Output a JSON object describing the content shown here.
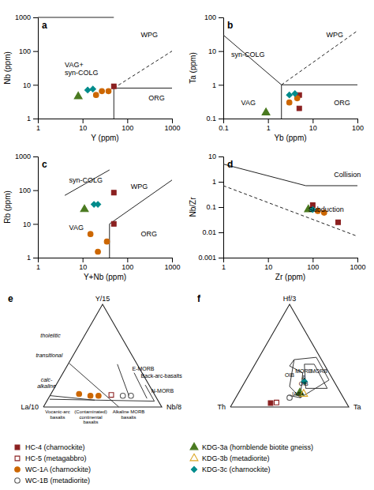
{
  "chart_data": [
    {
      "type": "scatter",
      "title": "a",
      "x_label": "Y (ppm)",
      "y_label": "Nb (ppm)",
      "log": true,
      "xlim": [
        1,
        1000
      ],
      "ylim": [
        1,
        1000
      ],
      "xticks": [
        1,
        10,
        100,
        1000
      ],
      "yticks": [
        1,
        10,
        100,
        1000
      ],
      "boundaries": [
        {
          "x": [
            1,
            50
          ],
          "y": [
            1000,
            1000
          ],
          "line_style": "solid"
        },
        {
          "x": [
            50,
            50
          ],
          "y": [
            8,
            1
          ],
          "line_style": "solid"
        },
        {
          "x": [
            50,
            1000
          ],
          "y": [
            8,
            8
          ],
          "line_style": "solid"
        },
        {
          "x": [
            50,
            1000
          ],
          "y": [
            8,
            100
          ],
          "line_style": "dashed"
        }
      ],
      "annotations": [
        {
          "text": "WPG",
          "x": 200,
          "y": 300
        },
        {
          "text": "VAG+\nsyn-COLG",
          "x": 4,
          "y": 30
        },
        {
          "text": "ORG",
          "x": 300,
          "y": 4
        }
      ],
      "series": [
        {
          "color": "#8B2020",
          "marker": "square",
          "x": [
            50
          ],
          "values": [
            9
          ]
        },
        {
          "color": "#CC6600",
          "marker": "circle",
          "x": [
            20,
            27
          ],
          "values": [
            5,
            6.5
          ]
        },
        {
          "color": "#4A7A20",
          "marker": "triangle",
          "x": [
            8
          ],
          "values": [
            4.5
          ]
        },
        {
          "color": "#008B8B",
          "marker": "diamond",
          "x": [
            13,
            17
          ],
          "values": [
            7,
            7.5
          ]
        },
        {
          "color": "#CC6600",
          "marker": "circle",
          "x": [
            38
          ],
          "values": [
            6.5
          ]
        }
      ]
    },
    {
      "type": "scatter",
      "title": "b",
      "x_label": "Yb (ppm)",
      "y_label": "Ta (ppm)",
      "log": true,
      "xlim": [
        0.1,
        100
      ],
      "ylim": [
        0.1,
        100
      ],
      "xticks": [
        0.1,
        1,
        10,
        100
      ],
      "yticks": [
        0.1,
        1,
        10,
        100
      ],
      "boundaries": [
        {
          "x": [
            0.1,
            2
          ],
          "y": [
            30,
            1
          ],
          "line_style": "solid"
        },
        {
          "x": [
            2,
            2
          ],
          "y": [
            1,
            0.1
          ],
          "line_style": "solid"
        },
        {
          "x": [
            2,
            100
          ],
          "y": [
            1,
            1
          ],
          "line_style": "solid"
        },
        {
          "x": [
            2,
            100
          ],
          "y": [
            1,
            40
          ],
          "line_style": "dashed"
        }
      ],
      "annotations": [
        {
          "text": "WPG",
          "x": 20,
          "y": 30
        },
        {
          "text": "syn-COLG",
          "x": 0.15,
          "y": 8
        },
        {
          "text": "VAG",
          "x": 0.25,
          "y": 0.3
        },
        {
          "text": "ORG",
          "x": 30,
          "y": 0.3
        }
      ],
      "series": [
        {
          "color": "#8B2020",
          "marker": "square",
          "x": [
            5
          ],
          "values": [
            0.5
          ]
        },
        {
          "color": "#8B2020",
          "marker": "square",
          "x": [
            5
          ],
          "values": [
            0.2
          ]
        },
        {
          "color": "#CC6600",
          "marker": "circle",
          "x": [
            3,
            4.5
          ],
          "values": [
            0.3,
            0.4
          ]
        },
        {
          "color": "#4A7A20",
          "marker": "triangle",
          "x": [
            0.9
          ],
          "values": [
            0.15
          ]
        },
        {
          "color": "#008B8B",
          "marker": "diamond",
          "x": [
            3,
            4
          ],
          "values": [
            0.5,
            0.55
          ]
        }
      ]
    },
    {
      "type": "scatter",
      "title": "c",
      "x_label": "Y+Nb (ppm)",
      "y_label": "Rb (ppm)",
      "log": true,
      "xlim": [
        1,
        1000
      ],
      "ylim": [
        1,
        1000
      ],
      "xticks": [
        1,
        10,
        100,
        1000
      ],
      "yticks": [
        1,
        10,
        100,
        1000
      ],
      "boundaries": [
        {
          "x": [
            4,
            40
          ],
          "y": [
            70,
            400
          ],
          "line_style": "solid"
        },
        {
          "x": [
            40,
            40
          ],
          "y": [
            10,
            1
          ],
          "line_style": "solid"
        },
        {
          "x": [
            40,
            1000
          ],
          "y": [
            10,
            200
          ],
          "line_style": "solid"
        }
      ],
      "annotations": [
        {
          "text": "syn-COLG",
          "x": 5,
          "y": 200
        },
        {
          "text": "WPG",
          "x": 120,
          "y": 130
        },
        {
          "text": "VAG",
          "x": 5,
          "y": 8
        },
        {
          "text": "ORG",
          "x": 200,
          "y": 5
        }
      ],
      "series": [
        {
          "color": "#8B2020",
          "marker": "square",
          "x": [
            50
          ],
          "values": [
            85
          ]
        },
        {
          "color": "#8B2020",
          "marker": "square",
          "x": [
            50
          ],
          "values": [
            10
          ]
        },
        {
          "color": "#CC6600",
          "marker": "circle",
          "x": [
            15,
            22
          ],
          "values": [
            5,
            1.5
          ]
        },
        {
          "color": "#CC6600",
          "marker": "circle",
          "x": [
            35
          ],
          "values": [
            3
          ]
        },
        {
          "color": "#4A7A20",
          "marker": "triangle",
          "x": [
            11
          ],
          "values": [
            27
          ]
        },
        {
          "color": "#008B8B",
          "marker": "diamond",
          "x": [
            18,
            22
          ],
          "values": [
            38,
            38
          ]
        }
      ]
    },
    {
      "type": "scatter",
      "title": "d",
      "x_label": "Zr (ppm)",
      "y_label": "Nb/Zr",
      "log": true,
      "xlim": [
        1,
        1000
      ],
      "ylim": [
        0.001,
        10
      ],
      "xticks": [
        1,
        10,
        100,
        1000
      ],
      "yticks": [
        0.001,
        0.01,
        0.1,
        1,
        10
      ],
      "boundaries": [
        {
          "x": [
            1,
            70
          ],
          "y": [
            5,
            0.7
          ],
          "line_style": "solid"
        },
        {
          "x": [
            70,
            1000
          ],
          "y": [
            0.7,
            0.7
          ],
          "line_style": "solid"
        },
        {
          "x": [
            1,
            1000
          ],
          "y": [
            0.7,
            0.007
          ],
          "line_style": "dashed"
        }
      ],
      "annotations": [
        {
          "text": "Collision",
          "x": 300,
          "y": 2
        },
        {
          "text": "Subduction",
          "x": 80,
          "y": 0.08
        }
      ],
      "series": [
        {
          "color": "#8B2020",
          "marker": "square",
          "x": [
            370
          ],
          "values": [
            0.025
          ]
        },
        {
          "color": "#CC6600",
          "marker": "circle",
          "x": [
            130,
            180
          ],
          "values": [
            0.07,
            0.06
          ]
        },
        {
          "color": "#4A7A20",
          "marker": "triangle",
          "x": [
            80
          ],
          "values": [
            0.08
          ]
        },
        {
          "color": "#8B2020",
          "marker": "square",
          "x": [
            100
          ],
          "values": [
            0.12
          ]
        },
        {
          "color": "#008B8B",
          "marker": "diamond",
          "x": [
            100
          ],
          "values": [
            0.08
          ]
        }
      ]
    },
    {
      "type": "ternary",
      "title": "e",
      "corner_labels": {
        "left": "La/10",
        "right": "Nb/8",
        "top": "Y/15"
      },
      "boundaries": [
        {
          "left": [
            0.3,
            6
          ],
          "right": [
            8,
            0.1
          ],
          "top": [
            0.5,
            0.5
          ]
        },
        {
          "left": [
            0.3,
            0.3
          ],
          "right": [
            8,
            7
          ],
          "top": [
            0.5,
            2
          ]
        },
        {
          "left": [
            0.5,
            0.5
          ],
          "right": [
            5,
            4.5
          ],
          "top": [
            0.5,
            2.5
          ]
        },
        {
          "left": [
            1,
            1
          ],
          "right": [
            3,
            2.5
          ],
          "top": [
            0.5,
            2.5
          ]
        },
        {
          "left": [
            4,
            4
          ],
          "right": [
            0.01,
            3
          ],
          "top": [
            0.5,
            0.5
          ]
        },
        {
          "left": [
            2,
            2
          ],
          "right": [
            0.01,
            3.5
          ],
          "top": [
            1.5,
            0.01
          ]
        }
      ],
      "annotations": [
        {
          "text": "N-MORB",
          "left": 0.2,
          "right": 9,
          "top": 1.5
        },
        {
          "text": "Back-arc-basalts",
          "left": 0.3,
          "right": 6,
          "top": 2.5
        },
        {
          "text": "E-MORB",
          "left": 0.5,
          "right": 4,
          "top": 2.5
        }
      ],
      "side_labels": [
        "tholeiitic",
        "transitional",
        "calc-\nalkaline"
      ],
      "base_labels": [
        "Vocanic-arc\nbasalts",
        "(Contaminated)\ncontinental\nbasalts",
        "Alkaline MORB\nbasalts"
      ],
      "series": [
        {
          "color": "#555555",
          "marker": "circle-open",
          "left": [
            1.5,
            2.0
          ],
          "right": [
            5,
            4.5
          ],
          "top": [
            0.8,
            0.8
          ]
        },
        {
          "color": "#8B2020",
          "marker": "square-open",
          "left": [
            2.5
          ],
          "right": [
            3.5
          ],
          "top": [
            0.8
          ]
        },
        {
          "color": "#CC6600",
          "marker": "circle",
          "left": [
            3.5,
            4,
            4
          ],
          "right": [
            3,
            2.5,
            1.5
          ],
          "top": [
            0.8,
            0.8,
            0.8
          ]
        }
      ]
    },
    {
      "type": "ternary",
      "title": "f",
      "corner_labels": {
        "left": "Th",
        "right": "Ta",
        "top": "Hf/3"
      },
      "boundaries": [
        {
          "left": [
            0.2,
            0.2,
            1.5,
            2,
            2,
            0.2
          ],
          "right": [
            4,
            3,
            2,
            2,
            3,
            4
          ],
          "top": [
            1.5,
            3,
            3,
            1,
            0.5,
            1.5
          ]
        },
        {
          "left": [
            0.5,
            0.5,
            1,
            1.5,
            0.5
          ],
          "right": [
            4,
            3,
            2.5,
            3,
            4
          ],
          "top": [
            1,
            2.5,
            2.5,
            1,
            1
          ]
        },
        {
          "left": [
            2,
            1,
            1.5,
            1.5
          ],
          "right": [
            3,
            2,
            1.5,
            2
          ],
          "top": [
            0.5,
            1.5,
            2,
            3
          ]
        },
        {
          "left": [
            2,
            2
          ],
          "right": [
            3,
            2
          ],
          "top": [
            0.5,
            0.5
          ]
        }
      ],
      "annotations": [
        {
          "text": "MORB",
          "left": 0.5,
          "right": 3.5,
          "top": 2
        },
        {
          "text": "MORB\n&\nOIB",
          "left": 1.2,
          "right": 2.5,
          "top": 1.8
        },
        {
          "text": "OIB",
          "left": 1.8,
          "right": 1.8,
          "top": 1.5
        },
        {
          "text": "IAB+",
          "left": 1.8,
          "right": 2.5,
          "top": 0.5
        }
      ],
      "series": [
        {
          "color": "#8B2020",
          "marker": "square",
          "left": [
            5
          ],
          "right": [
            2.5
          ],
          "top": [
            0.3
          ]
        },
        {
          "color": "#8B2020",
          "marker": "square-open",
          "left": [
            4
          ],
          "right": [
            2.5
          ],
          "top": [
            0.3
          ]
        },
        {
          "color": "#4A7A20",
          "marker": "triangle",
          "left": [
            2
          ],
          "right": [
            3
          ],
          "top": [
            0.8
          ]
        },
        {
          "color": "#DAA520",
          "marker": "triangle-open",
          "left": [
            2
          ],
          "right": [
            3.5
          ],
          "top": [
            0.8
          ]
        },
        {
          "color": "#008B8B",
          "marker": "diamond",
          "left": [
            1.5
          ],
          "right": [
            3
          ],
          "top": [
            1.5
          ]
        },
        {
          "color": "#555555",
          "marker": "circle-open",
          "left": [
            2.5
          ],
          "right": [
            2.5
          ],
          "top": [
            0.5
          ]
        }
      ]
    },
    {
      "type": "legend",
      "series": [
        {
          "name": "HC-4 (charnockite)",
          "color": "#8B2020",
          "marker": "square"
        },
        {
          "name": "HC-5 (metagabbro)",
          "color": "#8B2020",
          "marker": "square-open"
        },
        {
          "name": "WC-1A (charnockite)",
          "color": "#CC6600",
          "marker": "circle"
        },
        {
          "name": "WC-1B (metadiorite)",
          "color": "#555555",
          "marker": "circle-open"
        },
        {
          "name": "KDG-3a (hornblende biotite gneiss)",
          "color": "#4A7A20",
          "marker": "triangle"
        },
        {
          "name": "KDG-3b (metadiorite)",
          "color": "#DAA520",
          "marker": "triangle-open"
        },
        {
          "name": "KDG-3c (charnockite)",
          "color": "#008B8B",
          "marker": "diamond"
        }
      ]
    }
  ]
}
